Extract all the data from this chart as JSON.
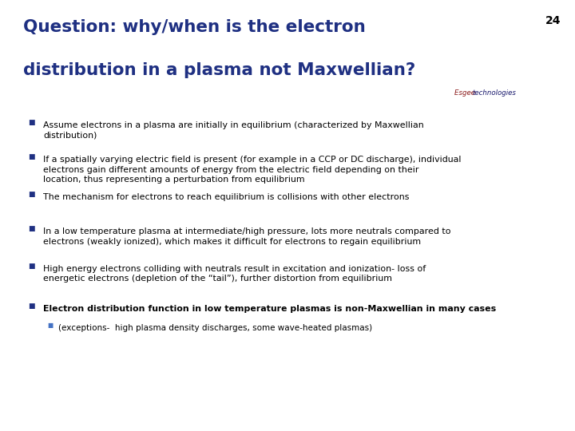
{
  "title_line1": "Question: why/when is the electron",
  "title_line2": "distribution in a plasma not Maxwellian?",
  "slide_number": "24",
  "title_color": "#1F3082",
  "bg_color": "#FFFFFF",
  "bar_color": "#1F3082",
  "brand_esgee_color": "#8B1A1A",
  "brand_tech_color": "#1a1a6e",
  "brand_text1": "Esgee ",
  "brand_text2": "technologies",
  "bullets": [
    "Assume electrons in a plasma are initially in equilibrium (characterized by Maxwellian\ndistribution)",
    "If a spatially varying electric field is present (for example in a CCP or DC discharge), individual\nelectrons gain different amounts of energy from the electric field depending on their\nlocation, thus representing a perturbation from equilibrium",
    "The mechanism for electrons to reach equilibrium is collisions with other electrons",
    "In a low temperature plasma at intermediate/high pressure, lots more neutrals compared to\nelectrons (weakly ionized), which makes it difficult for electrons to regain equilibrium",
    "High energy electrons colliding with neutrals result in excitation and ionization- loss of\nenergetic electrons (depletion of the “tail”), further distortion from equilibrium",
    "Electron distribution function in low temperature plasmas is non-Maxwellian in many cases"
  ],
  "sub_bullet": "(exceptions-  high plasma density discharges, some wave-heated plasmas)",
  "bullet_color": "#1F3082",
  "sub_bullet_color": "#4472C4",
  "text_color": "#000000",
  "figsize": [
    7.2,
    5.4
  ],
  "dpi": 100
}
